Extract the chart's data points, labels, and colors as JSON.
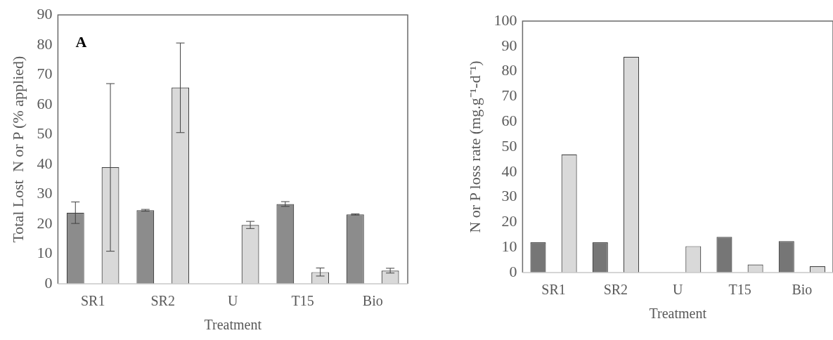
{
  "chart_data": [
    {
      "type": "bar",
      "categories": [
        "SR1",
        "SR2",
        "U",
        "T15",
        "Bio"
      ],
      "xlabel": "Treatment",
      "ylabel": "Total Lost  N or P (% applied)",
      "ylim": [
        0,
        90
      ],
      "yticks": [
        0,
        10,
        20,
        30,
        40,
        50,
        60,
        70,
        80,
        90
      ],
      "grid": false,
      "legend": false,
      "annotations": [
        "A"
      ],
      "series": [
        {
          "color": "#8c8c8c",
          "values": [
            23.8,
            24.6,
            null,
            26.7,
            23.2
          ],
          "errors": [
            3.6,
            0.3,
            null,
            0.8,
            0.2
          ]
        },
        {
          "color": "#d9d9d9",
          "values": [
            39,
            65.7,
            19.7,
            3.9,
            4.4
          ],
          "errors": [
            [
              10.9,
              67
            ],
            [
              50.6,
              80.6
            ],
            [
              18.5,
              20.9
            ],
            [
              2.6,
              5.3
            ],
            [
              3.6,
              5.2
            ]
          ]
        }
      ]
    },
    {
      "type": "bar",
      "categories": [
        "SR1",
        "SR2",
        "U",
        "T15",
        "Bio"
      ],
      "xlabel": "Treatment",
      "ylabel": "N or P loss rate (mg.g⁻¹-d⁻¹)",
      "ylim": [
        0,
        100
      ],
      "yticks": [
        0,
        10,
        20,
        30,
        40,
        50,
        60,
        70,
        80,
        90,
        100
      ],
      "grid": false,
      "legend": false,
      "series": [
        {
          "color": "#767676",
          "values": [
            12,
            12,
            null,
            14.2,
            12.5
          ]
        },
        {
          "color": "#d9d9d9",
          "values": [
            47,
            85.8,
            10.5,
            3.2,
            2.5
          ]
        }
      ]
    }
  ]
}
